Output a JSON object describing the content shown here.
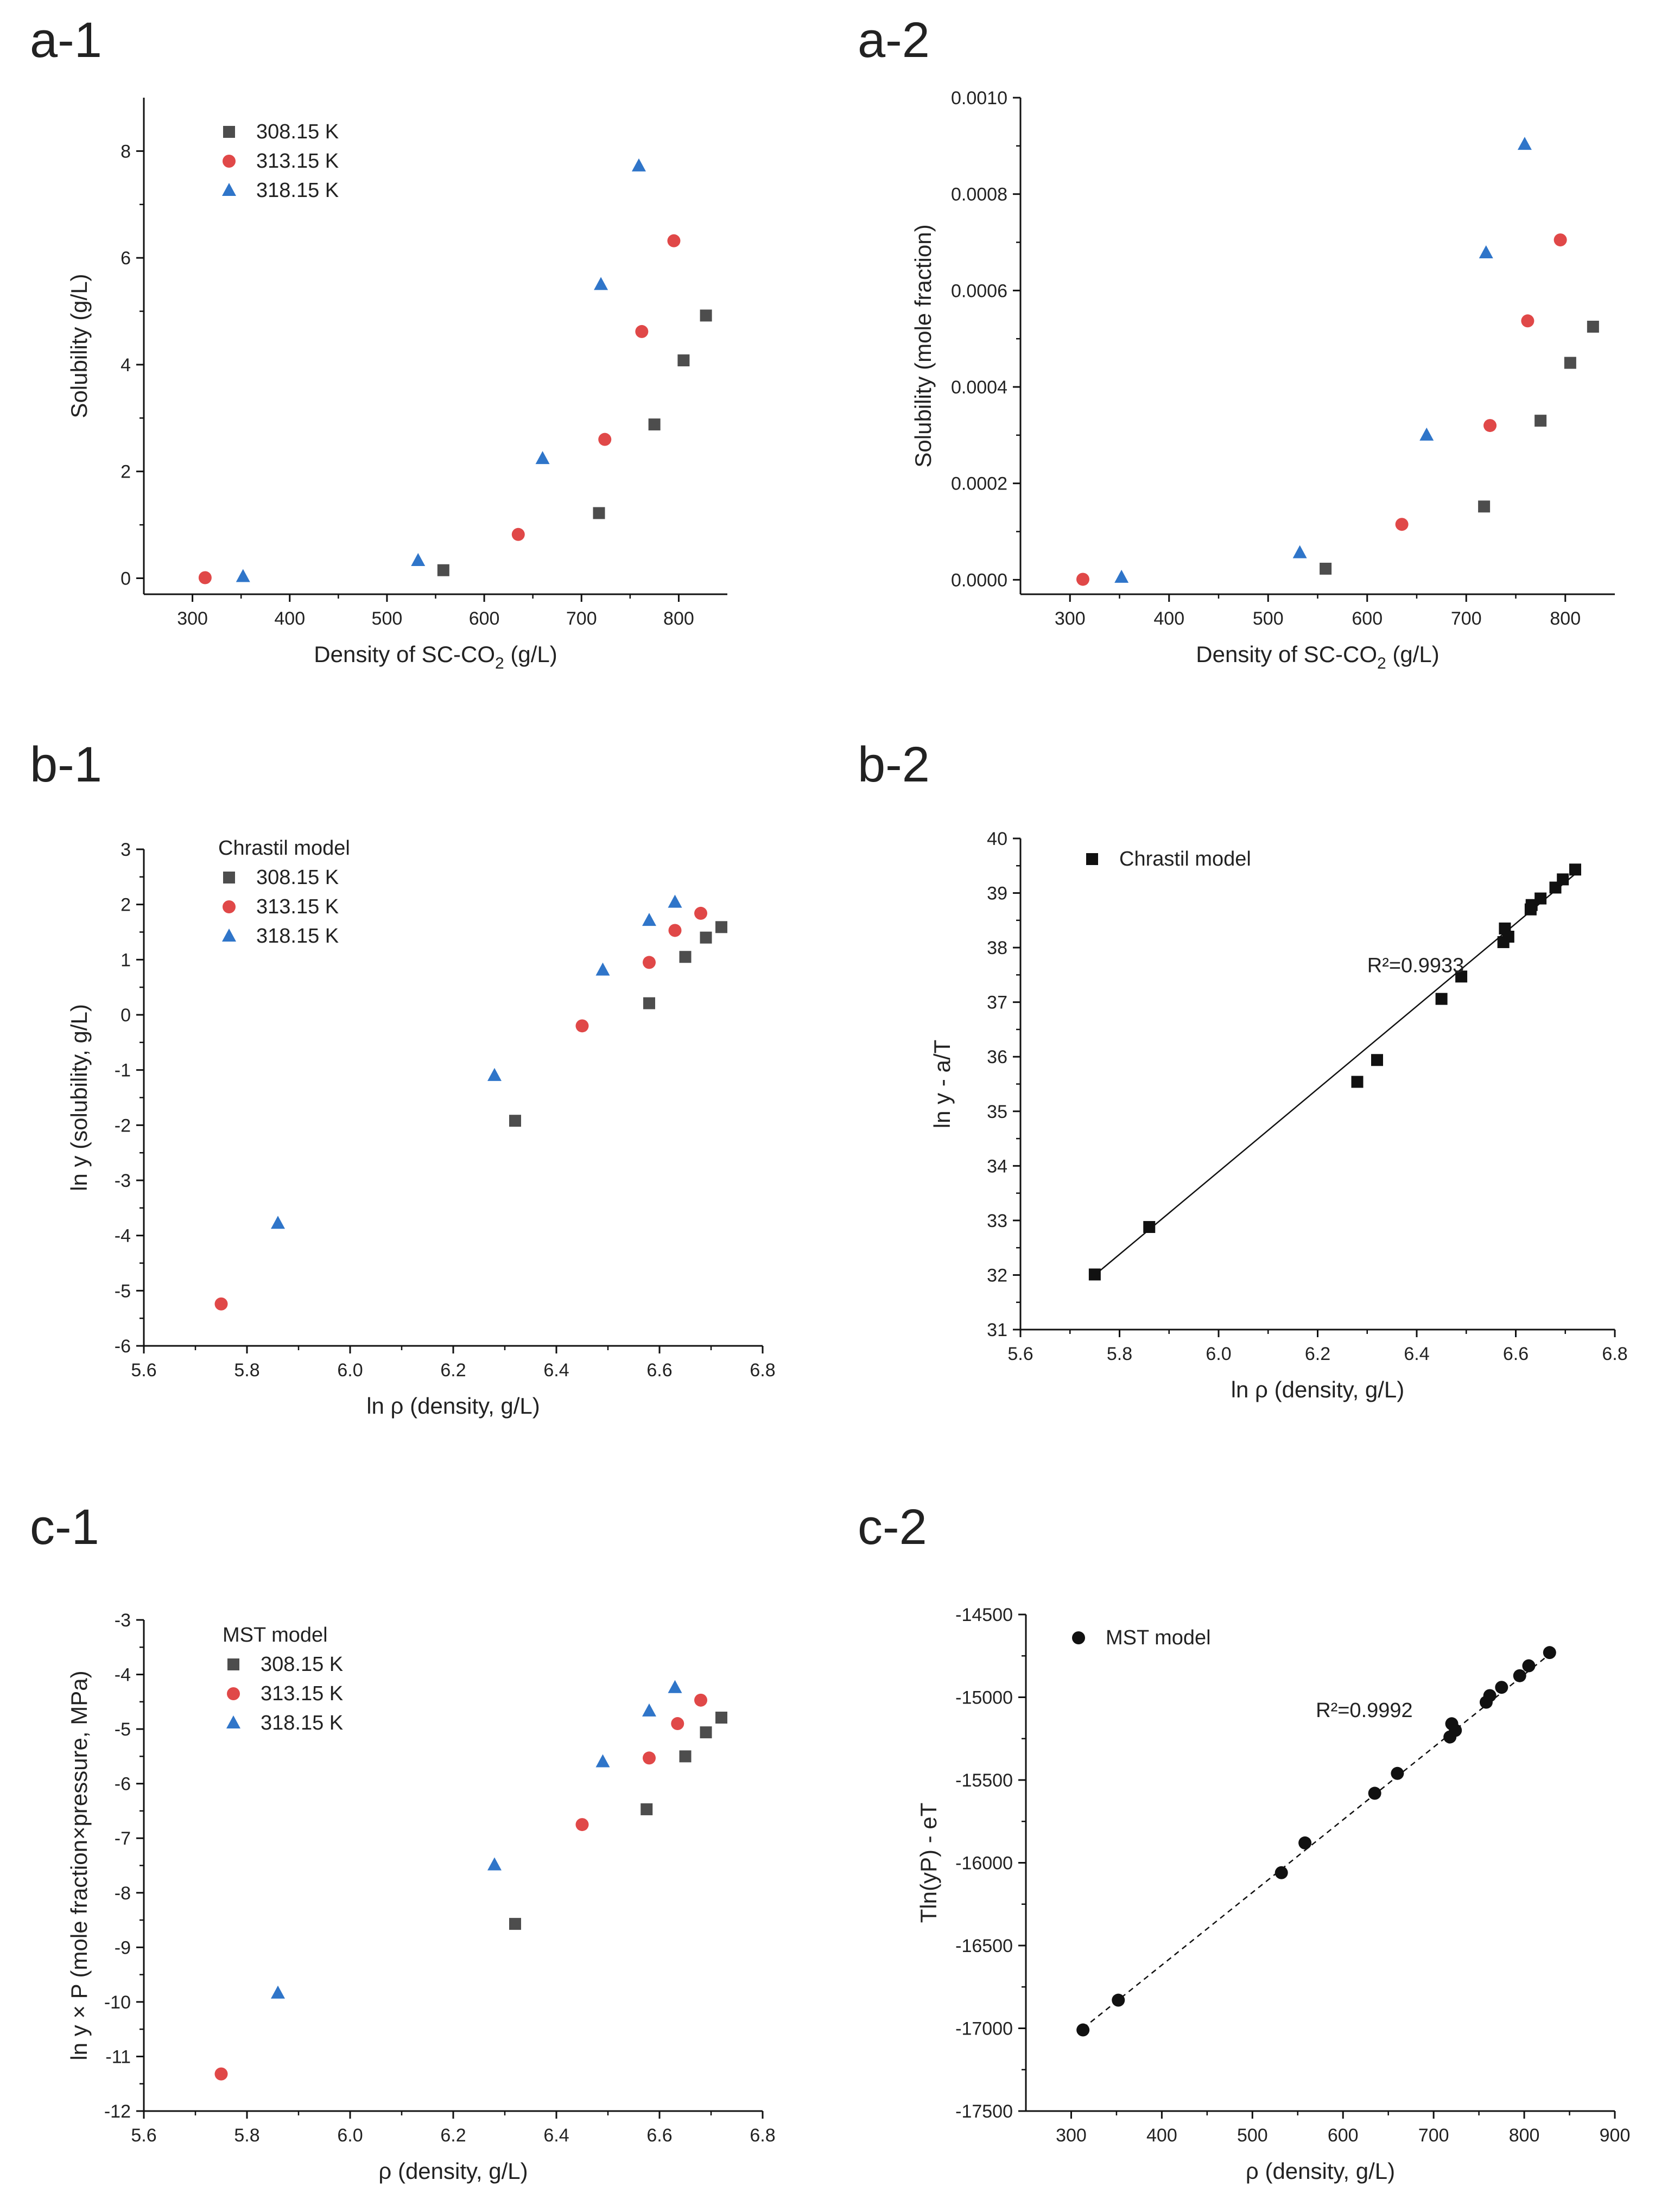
{
  "figure": {
    "colors": {
      "s308": "#4d4d4d",
      "s313": "#e04848",
      "s318": "#2f75c9",
      "black": "#111111"
    }
  },
  "chart_data": [
    {
      "id": "a1",
      "panel_label": "a-1",
      "type": "scatter",
      "xlabel": "Density of SC-CO",
      "xlabel_sub": "2",
      "xlabel_suffix": " (g/L)",
      "ylabel": "Solubility (g/L)",
      "xlim": [
        250,
        850
      ],
      "ylim": [
        -0.3,
        9
      ],
      "xticks": [
        300,
        400,
        500,
        600,
        700,
        800
      ],
      "yticks": [
        0,
        2,
        4,
        6,
        8
      ],
      "legend_title": "",
      "series": [
        {
          "name": "308.15 K",
          "marker": "square",
          "color": "#4d4d4d",
          "x": [
            558,
            718,
            775,
            805,
            828
          ],
          "y": [
            0.15,
            1.22,
            2.88,
            4.08,
            4.92
          ]
        },
        {
          "name": "313.15 K",
          "marker": "circle",
          "color": "#e04848",
          "x": [
            313,
            635,
            724,
            762,
            795
          ],
          "y": [
            0.01,
            0.82,
            2.6,
            4.62,
            6.32
          ]
        },
        {
          "name": "318.15 K",
          "marker": "triangle",
          "color": "#2f75c9",
          "x": [
            352,
            532,
            660,
            720,
            759
          ],
          "y": [
            0.03,
            0.33,
            2.24,
            5.5,
            7.72
          ]
        }
      ]
    },
    {
      "id": "a2",
      "panel_label": "a-2",
      "type": "scatter",
      "xlabel": "Density of SC-CO",
      "xlabel_sub": "2",
      "xlabel_suffix": " (g/L)",
      "ylabel": "Solubility (mole fraction)",
      "xlim": [
        250,
        850
      ],
      "ylim": [
        -3e-05,
        0.001
      ],
      "xticks": [
        300,
        400,
        500,
        600,
        700,
        800
      ],
      "yticks": [
        0,
        0.0002,
        0.0004,
        0.0006,
        0.0008,
        0.001
      ],
      "ytick_labels": [
        "0.0000",
        "0.0002",
        "0.0004",
        "0.0006",
        "0.0008",
        "0.0010"
      ],
      "legend_title": "",
      "series": [
        {
          "name": "308.15 K",
          "marker": "square",
          "color": "#4d4d4d",
          "x": [
            558,
            718,
            775,
            805,
            828
          ],
          "y": [
            2.3e-05,
            0.000152,
            0.00033,
            0.00045,
            0.000525
          ]
        },
        {
          "name": "313.15 K",
          "marker": "circle",
          "color": "#e04848",
          "x": [
            313,
            635,
            724,
            762,
            795
          ],
          "y": [
            1e-06,
            0.000115,
            0.00032,
            0.000537,
            0.000705
          ]
        },
        {
          "name": "318.15 K",
          "marker": "triangle",
          "color": "#2f75c9",
          "x": [
            352,
            532,
            660,
            720,
            759
          ],
          "y": [
            5e-06,
            5.6e-05,
            0.0003,
            0.000678,
            0.000903
          ]
        }
      ]
    },
    {
      "id": "b1",
      "panel_label": "b-1",
      "type": "scatter",
      "xlabel": "ln ρ (density, g/L)",
      "ylabel": "ln y (solubility, g/L)",
      "xlim": [
        5.6,
        6.8
      ],
      "ylim": [
        -6,
        3
      ],
      "xticks": [
        5.6,
        5.8,
        6.0,
        6.2,
        6.4,
        6.6,
        6.8
      ],
      "yticks": [
        -6,
        -5,
        -4,
        -3,
        -2,
        -1,
        0,
        1,
        2,
        3
      ],
      "legend_title": "Chrastil model",
      "series": [
        {
          "name": "308.15 K",
          "marker": "square",
          "color": "#4d4d4d",
          "x": [
            6.32,
            6.58,
            6.65,
            6.69,
            6.72
          ],
          "y": [
            -1.92,
            0.21,
            1.05,
            1.4,
            1.59
          ]
        },
        {
          "name": "313.15 K",
          "marker": "circle",
          "color": "#e04848",
          "x": [
            5.75,
            6.45,
            6.58,
            6.63,
            6.68
          ],
          "y": [
            -5.24,
            -0.2,
            0.95,
            1.53,
            1.84
          ]
        },
        {
          "name": "318.15 K",
          "marker": "triangle",
          "color": "#2f75c9",
          "x": [
            5.86,
            6.28,
            6.49,
            6.58,
            6.63
          ],
          "y": [
            -3.78,
            -1.1,
            0.81,
            1.71,
            2.04
          ]
        }
      ]
    },
    {
      "id": "b2",
      "panel_label": "b-2",
      "type": "scatter",
      "xlabel": "ln ρ (density, g/L)",
      "ylabel": "ln y - a/T",
      "xlim": [
        5.6,
        6.8
      ],
      "ylim": [
        31,
        40
      ],
      "xticks": [
        5.6,
        5.8,
        6.0,
        6.2,
        6.4,
        6.6,
        6.8
      ],
      "yticks": [
        31,
        32,
        33,
        34,
        35,
        36,
        37,
        38,
        39,
        40
      ],
      "legend_title": "",
      "annotation": "R²=0.9933",
      "annotation_at": [
        6.3,
        37.55
      ],
      "fit": {
        "x": [
          5.75,
          6.72
        ],
        "y": [
          32.0,
          39.35
        ],
        "style": "solid"
      },
      "series": [
        {
          "name": "Chrastil model",
          "marker": "square",
          "color": "#111111",
          "x": [
            5.75,
            5.86,
            6.28,
            6.32,
            6.45,
            6.49,
            6.575,
            6.578,
            6.585,
            6.63,
            6.632,
            6.65,
            6.68,
            6.695,
            6.72
          ],
          "y": [
            32.01,
            32.88,
            35.54,
            35.94,
            37.06,
            37.47,
            38.1,
            38.35,
            38.2,
            38.7,
            38.78,
            38.9,
            39.1,
            39.25,
            39.43
          ]
        }
      ]
    },
    {
      "id": "c1",
      "panel_label": "c-1",
      "type": "scatter",
      "xlabel": "ρ (density, g/L)",
      "ylabel": "ln y × P (mole fraction×pressure, MPa)",
      "xlim": [
        5.6,
        6.8
      ],
      "ylim": [
        -12,
        -3
      ],
      "xticks": [
        5.6,
        5.8,
        6.0,
        6.2,
        6.4,
        6.6,
        6.8
      ],
      "yticks": [
        -12,
        -11,
        -10,
        -9,
        -8,
        -7,
        -6,
        -5,
        -4,
        -3
      ],
      "legend_title": "MST model",
      "series": [
        {
          "name": "308.15 K",
          "marker": "square",
          "color": "#4d4d4d",
          "x": [
            6.32,
            6.575,
            6.65,
            6.69,
            6.72
          ],
          "y": [
            -8.57,
            -6.47,
            -5.5,
            -5.06,
            -4.79
          ]
        },
        {
          "name": "313.15 K",
          "marker": "circle",
          "color": "#e04848",
          "x": [
            5.75,
            6.45,
            6.58,
            6.635,
            6.68
          ],
          "y": [
            -11.32,
            -6.75,
            -5.53,
            -4.9,
            -4.47
          ]
        },
        {
          "name": "318.15 K",
          "marker": "triangle",
          "color": "#2f75c9",
          "x": [
            5.86,
            6.28,
            6.49,
            6.58,
            6.63
          ],
          "y": [
            -9.84,
            -7.49,
            -5.6,
            -4.67,
            -4.24
          ]
        }
      ]
    },
    {
      "id": "c2",
      "panel_label": "c-2",
      "type": "scatter",
      "xlabel": "ρ (density, g/L)",
      "ylabel": "Tln(yP) - eT",
      "xlim": [
        250,
        900
      ],
      "ylim": [
        -17500,
        -14500
      ],
      "xticks": [
        300,
        400,
        500,
        600,
        700,
        800,
        900
      ],
      "yticks": [
        -17500,
        -17000,
        -16500,
        -16000,
        -15500,
        -15000,
        -14500
      ],
      "legend_title": "",
      "annotation": "R²=0.9992",
      "annotation_at": [
        570,
        -15120
      ],
      "fit": {
        "x": [
          313,
          828
        ],
        "y": [
          -17000,
          -14740
        ],
        "style": "dashed"
      },
      "series": [
        {
          "name": "MST model",
          "marker": "circle",
          "color": "#111111",
          "x": [
            313,
            352,
            532,
            558,
            635,
            660,
            718,
            720,
            724,
            758,
            762,
            775,
            795,
            805,
            828
          ],
          "y": [
            -17010,
            -16830,
            -16060,
            -15880,
            -15580,
            -15460,
            -15240,
            -15160,
            -15200,
            -15030,
            -14990,
            -14940,
            -14870,
            -14810,
            -14730
          ]
        }
      ]
    }
  ]
}
